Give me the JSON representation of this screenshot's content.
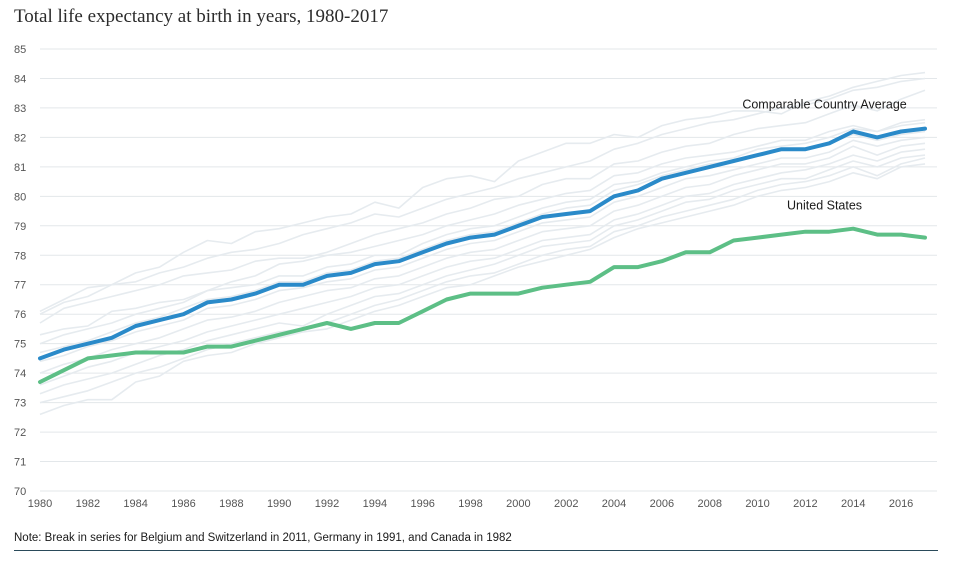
{
  "chart_data": {
    "type": "line",
    "title": "Total life expectancy at birth in years, 1980-2017",
    "note": "Note: Break in series for Belgium and Switzerland in 2011, Germany in 1991, and Canada in 1982",
    "xlabel": "",
    "ylabel": "",
    "xlim": [
      1980,
      2017
    ],
    "ylim": [
      70,
      85
    ],
    "x_ticks": [
      "1980",
      "1982",
      "1984",
      "1986",
      "1988",
      "1990",
      "1992",
      "1994",
      "1996",
      "1998",
      "2000",
      "2002",
      "2004",
      "2006",
      "2008",
      "2010",
      "2012",
      "2014",
      "2016"
    ],
    "y_ticks": [
      "70",
      "71",
      "72",
      "73",
      "74",
      "75",
      "76",
      "77",
      "78",
      "79",
      "80",
      "81",
      "82",
      "83",
      "84",
      "85"
    ],
    "grid": "horizontal",
    "x": [
      1980,
      1981,
      1982,
      1983,
      1984,
      1985,
      1986,
      1987,
      1988,
      1989,
      1990,
      1991,
      1992,
      1993,
      1994,
      1995,
      1996,
      1997,
      1998,
      1999,
      2000,
      2001,
      2002,
      2003,
      2004,
      2005,
      2006,
      2007,
      2008,
      2009,
      2010,
      2011,
      2012,
      2013,
      2014,
      2015,
      2016,
      2017
    ],
    "series": [
      {
        "name": "Comparable Country Average",
        "color": "#2a8ac9",
        "values": [
          74.5,
          74.8,
          75.0,
          75.2,
          75.6,
          75.8,
          76.0,
          76.4,
          76.5,
          76.7,
          77.0,
          77.0,
          77.3,
          77.4,
          77.7,
          77.8,
          78.1,
          78.4,
          78.6,
          78.7,
          79.0,
          79.3,
          79.4,
          79.5,
          80.0,
          80.2,
          80.6,
          80.8,
          81.0,
          81.2,
          81.4,
          81.6,
          81.6,
          81.8,
          82.2,
          82.0,
          82.2,
          82.3
        ]
      },
      {
        "name": "United States",
        "color": "#5dbf86",
        "values": [
          73.7,
          74.1,
          74.5,
          74.6,
          74.7,
          74.7,
          74.7,
          74.9,
          74.9,
          75.1,
          75.3,
          75.5,
          75.7,
          75.5,
          75.7,
          75.7,
          76.1,
          76.5,
          76.7,
          76.7,
          76.7,
          76.9,
          77.0,
          77.1,
          77.6,
          77.6,
          77.8,
          78.1,
          78.1,
          78.5,
          78.6,
          78.7,
          78.8,
          78.8,
          78.9,
          78.7,
          78.7,
          78.6
        ]
      }
    ],
    "background_series": [
      {
        "values": [
          76.0,
          76.4,
          76.6,
          77.0,
          77.1,
          77.4,
          77.6,
          77.9,
          78.1,
          78.2,
          78.4,
          78.7,
          78.9,
          79.1,
          79.4,
          79.3,
          79.6,
          79.9,
          80.1,
          80.3,
          80.6,
          80.8,
          81.0,
          81.2,
          81.6,
          81.8,
          82.1,
          82.3,
          82.5,
          82.6,
          82.8,
          83.0,
          83.1,
          83.3,
          83.6,
          83.7,
          83.9,
          84.0
        ]
      },
      {
        "values": [
          76.1,
          76.5,
          76.9,
          77.0,
          77.4,
          77.6,
          78.1,
          78.5,
          78.4,
          78.8,
          78.9,
          79.1,
          79.3,
          79.4,
          79.8,
          79.6,
          80.3,
          80.6,
          80.7,
          80.5,
          81.2,
          81.5,
          81.8,
          81.8,
          82.1,
          82.0,
          82.4,
          82.6,
          82.7,
          82.9,
          82.9,
          82.8,
          83.2,
          83.4,
          83.7,
          83.9,
          84.1,
          84.2
        ]
      },
      {
        "values": [
          75.7,
          76.2,
          76.4,
          76.6,
          76.8,
          77.0,
          77.3,
          77.4,
          77.5,
          77.8,
          77.9,
          77.9,
          78.1,
          78.4,
          78.7,
          78.9,
          79.1,
          79.4,
          79.6,
          79.9,
          80.0,
          80.4,
          80.6,
          80.6,
          81.1,
          81.2,
          81.5,
          81.7,
          81.8,
          82.1,
          82.3,
          82.4,
          82.5,
          82.8,
          83.1,
          82.9,
          83.3,
          83.6
        ]
      },
      {
        "values": [
          75.3,
          75.5,
          75.6,
          76.1,
          76.2,
          76.4,
          76.5,
          76.8,
          77.1,
          77.3,
          77.7,
          77.8,
          78.0,
          78.1,
          78.3,
          78.5,
          78.7,
          79.0,
          79.2,
          79.4,
          79.7,
          79.9,
          80.1,
          80.2,
          80.7,
          80.8,
          81.1,
          81.3,
          81.4,
          81.5,
          81.7,
          81.9,
          81.9,
          82.2,
          82.4,
          82.2,
          82.5,
          82.6
        ]
      },
      {
        "values": [
          75.0,
          75.3,
          75.5,
          75.7,
          76.0,
          76.2,
          76.4,
          76.8,
          76.9,
          77.0,
          77.3,
          77.3,
          77.6,
          77.7,
          78.0,
          78.0,
          78.4,
          78.7,
          78.9,
          79.0,
          79.3,
          79.6,
          79.8,
          79.9,
          80.4,
          80.5,
          80.8,
          81.0,
          81.2,
          81.3,
          81.6,
          81.7,
          81.8,
          82.0,
          82.3,
          82.2,
          82.4,
          82.5
        ]
      },
      {
        "values": [
          74.7,
          74.9,
          75.1,
          75.4,
          75.7,
          75.9,
          76.2,
          76.5,
          76.6,
          76.8,
          77.1,
          77.1,
          77.4,
          77.5,
          77.8,
          77.9,
          78.2,
          78.5,
          78.7,
          78.8,
          79.1,
          79.4,
          79.6,
          79.7,
          80.2,
          80.4,
          80.7,
          80.9,
          81.1,
          81.2,
          81.4,
          81.6,
          81.6,
          81.8,
          82.1,
          81.9,
          82.1,
          82.2
        ]
      },
      {
        "values": [
          74.4,
          74.6,
          74.9,
          75.1,
          75.4,
          75.6,
          75.8,
          76.2,
          76.3,
          76.5,
          76.8,
          76.9,
          77.1,
          77.2,
          77.5,
          77.6,
          77.9,
          78.2,
          78.4,
          78.5,
          78.8,
          79.1,
          79.2,
          79.3,
          79.8,
          80.0,
          80.3,
          80.6,
          80.7,
          80.9,
          81.1,
          81.3,
          81.3,
          81.5,
          81.9,
          81.7,
          81.9,
          82.0
        ]
      },
      {
        "values": [
          74.0,
          74.3,
          74.5,
          74.8,
          75.0,
          75.2,
          75.5,
          75.8,
          75.9,
          76.1,
          76.4,
          76.6,
          76.8,
          76.9,
          77.2,
          77.3,
          77.6,
          77.9,
          78.1,
          78.2,
          78.5,
          78.8,
          78.9,
          79.0,
          79.5,
          79.7,
          80.0,
          80.3,
          80.4,
          80.7,
          80.9,
          81.1,
          81.1,
          81.3,
          81.7,
          81.4,
          81.7,
          81.8
        ]
      },
      {
        "values": [
          73.6,
          73.9,
          74.2,
          74.4,
          74.7,
          74.9,
          75.1,
          75.4,
          75.6,
          75.8,
          76.0,
          76.2,
          76.4,
          76.6,
          76.9,
          77.0,
          77.3,
          77.6,
          77.8,
          77.9,
          78.2,
          78.5,
          78.6,
          78.7,
          79.2,
          79.4,
          79.7,
          80.0,
          80.1,
          80.4,
          80.6,
          80.8,
          80.9,
          81.1,
          81.4,
          81.2,
          81.5,
          81.6
        ]
      },
      {
        "values": [
          73.3,
          73.6,
          73.8,
          74.0,
          74.3,
          74.6,
          74.8,
          75.1,
          75.3,
          75.5,
          75.7,
          75.6,
          76.0,
          76.3,
          76.6,
          76.7,
          77.0,
          77.3,
          77.5,
          77.7,
          78.0,
          78.3,
          78.4,
          78.5,
          79.0,
          79.2,
          79.5,
          79.8,
          79.9,
          80.2,
          80.4,
          80.6,
          80.6,
          80.9,
          81.2,
          81.0,
          81.3,
          81.4
        ]
      },
      {
        "values": [
          73.0,
          73.2,
          73.4,
          73.7,
          74.0,
          74.2,
          74.5,
          74.8,
          75.0,
          75.2,
          75.4,
          75.5,
          75.7,
          76.0,
          76.3,
          76.5,
          76.8,
          77.1,
          77.3,
          77.4,
          77.7,
          78.0,
          78.2,
          78.3,
          78.8,
          79.0,
          79.3,
          79.5,
          79.7,
          79.9,
          80.2,
          80.4,
          80.5,
          80.7,
          81.0,
          80.7,
          81.1,
          81.3
        ]
      },
      {
        "values": [
          72.6,
          72.9,
          73.1,
          73.1,
          73.7,
          73.9,
          74.4,
          74.6,
          74.7,
          75.0,
          75.2,
          75.4,
          75.5,
          75.8,
          76.1,
          76.3,
          76.6,
          76.9,
          77.0,
          77.3,
          77.6,
          77.8,
          78.0,
          78.2,
          78.6,
          78.9,
          79.1,
          79.3,
          79.5,
          79.7,
          80.0,
          80.2,
          80.3,
          80.5,
          80.8,
          80.6,
          81.0,
          81.1
        ]
      }
    ]
  }
}
